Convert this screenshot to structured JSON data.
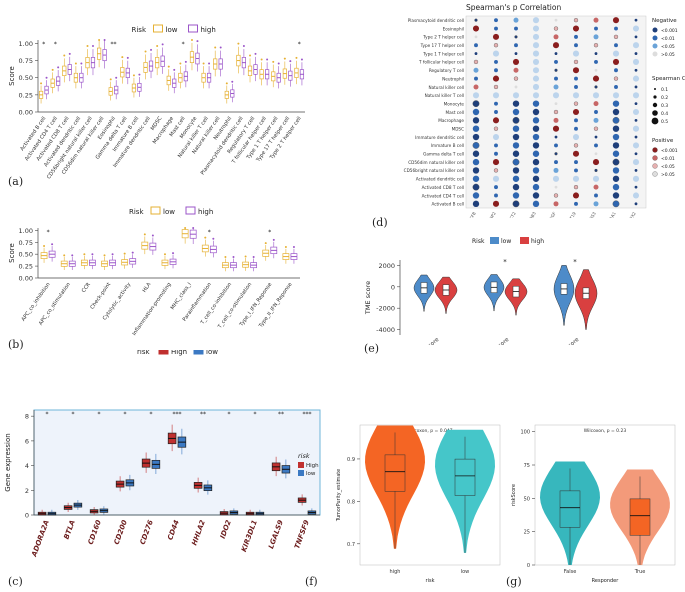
{
  "labels": {
    "a": "(a)",
    "b": "(b)",
    "c": "(c)",
    "d": "(d)",
    "e": "(e)",
    "f": "(f)",
    "g": "(g)"
  },
  "colors": {
    "low": "#e6b133",
    "high": "#9b55c9",
    "red": "#c0302f",
    "blue": "#3b79c3",
    "orange": "#f46524",
    "cyan": "#45c6c9",
    "salmon": "#f39a7a",
    "teal": "#37b7bd",
    "violinBlue": "#4d8bc9",
    "violinRed": "#d94040"
  },
  "chart_data": [
    {
      "id": "a",
      "type": "box",
      "legend_title": "Risk",
      "legend": [
        "low",
        "high"
      ],
      "ylabel": "Score",
      "yticks": [
        "0.00",
        "0.25",
        "0.50",
        "0.75",
        "1.00"
      ],
      "ylim": [
        0,
        1.05
      ],
      "categories": [
        "Activated B cell",
        "Activated CD4 T cell",
        "Activated CD8 T cell",
        "Activated dendritic cell",
        "CD56bright natural killer cell",
        "CD56dim natural killer cell",
        "Eosinophil",
        "Gamma delta T cell",
        "Immature B cell",
        "Immature dendritic cell",
        "MDSC",
        "Macrophage",
        "Mast cell",
        "Monocyte",
        "Natural killer T cell",
        "Natural killer cell",
        "Neutrophil",
        "Plasmacytoid dendritic cell",
        "Regulatory T cell",
        "T follicular helper cell",
        "Type 1 T helper cell",
        "Type 17 T helper cell",
        "Type 2 T helper cell"
      ],
      "series": [
        {
          "name": "low",
          "medians": [
            0.25,
            0.42,
            0.6,
            0.5,
            0.72,
            0.85,
            0.3,
            0.58,
            0.35,
            0.65,
            0.72,
            0.46,
            0.5,
            0.8,
            0.5,
            0.7,
            0.25,
            0.75,
            0.6,
            0.55,
            0.52,
            0.56,
            0.57
          ]
        },
        {
          "name": "high",
          "medians": [
            0.32,
            0.45,
            0.62,
            0.5,
            0.72,
            0.83,
            0.32,
            0.57,
            0.36,
            0.67,
            0.74,
            0.42,
            0.52,
            0.78,
            0.5,
            0.7,
            0.27,
            0.72,
            0.62,
            0.55,
            0.5,
            0.53,
            0.55
          ]
        }
      ],
      "significance": [
        "*",
        "*",
        "",
        "",
        "",
        "",
        "**",
        "",
        "",
        "",
        "",
        "",
        "*",
        "",
        "",
        "",
        "",
        "",
        "",
        "",
        "",
        "",
        "*"
      ]
    },
    {
      "id": "b",
      "type": "box",
      "legend_title": "Risk",
      "legend": [
        "low",
        "high"
      ],
      "ylabel": "Score",
      "yticks": [
        "0.00",
        "0.25",
        "0.50",
        "0.75",
        "1.00"
      ],
      "ylim": [
        0,
        1.05
      ],
      "categories": [
        "APC_co_inhibition",
        "APC_co_stimulation",
        "CCR",
        "Check-point",
        "Cytolytic_activity",
        "HLA",
        "Inflammation-promoting",
        "MHC_class_I",
        "Parainflammation",
        "T_cell_co-inhibition",
        "T_cell_co-stimulation",
        "Type_I_IFN_Reponse",
        "Type_II_IFN_Reponse"
      ],
      "series": [
        {
          "name": "low",
          "medians": [
            0.47,
            0.3,
            0.32,
            0.3,
            0.33,
            0.68,
            0.32,
            0.93,
            0.62,
            0.27,
            0.28,
            0.52,
            0.45
          ]
        },
        {
          "name": "high",
          "medians": [
            0.5,
            0.3,
            0.32,
            0.32,
            0.35,
            0.66,
            0.34,
            0.92,
            0.6,
            0.27,
            0.27,
            0.58,
            0.45
          ]
        }
      ],
      "significance": [
        "*",
        "",
        "",
        "",
        "",
        "",
        "",
        "",
        "*",
        "",
        "",
        "*",
        ""
      ]
    },
    {
      "id": "c",
      "type": "box",
      "legend_title": "risk",
      "legend": [
        "High",
        "low"
      ],
      "ylabel": "Gene expression",
      "yticks": [
        "0",
        "2",
        "4",
        "6",
        "8"
      ],
      "ylim": [
        0,
        8.5
      ],
      "categories": [
        "ADORA2A",
        "BTLA",
        "CD160",
        "CD200",
        "CD276",
        "CD44",
        "HHLA2",
        "IDO2",
        "KIR3DL1",
        "LGALS9",
        "TNFSF9"
      ],
      "series": [
        {
          "name": "High",
          "medians": [
            0.1,
            0.6,
            0.3,
            2.5,
            4.2,
            6.2,
            2.4,
            0.15,
            0.1,
            3.9,
            1.2
          ]
        },
        {
          "name": "low",
          "medians": [
            0.1,
            0.8,
            0.35,
            2.6,
            4.1,
            5.9,
            2.2,
            0.2,
            0.1,
            3.7,
            0.2
          ]
        }
      ],
      "significance": [
        "*",
        "*",
        "*",
        "*",
        "*",
        "***",
        "**",
        "*",
        "*",
        "**",
        "***"
      ]
    },
    {
      "id": "d",
      "type": "dot-heatmap",
      "title": "Spearman's p Correlation",
      "rows": [
        "Plasmacytoid dendritic cell",
        "Eosinophil",
        "Type 2 T helper cell",
        "Type 17 T helper cell",
        "Type 1 T helper cell",
        "T follicular helper cell",
        "Regulatory T cell",
        "Neutrophil",
        "Natural killer cell",
        "Natural killer T cell",
        "Monocyte",
        "Mast cell",
        "Macrophage",
        "MDSC",
        "Immature dendritic cell",
        "Immature B cell",
        "Gamma delta T cell",
        "CD56dim natural killer cell",
        "CD56bright natural killer cell",
        "Activated dendritic cell",
        "Activated CD8 T cell",
        "Activated CD4 T cell",
        "Activated B cell"
      ],
      "columns": [
        "CFB",
        "CRABP2",
        "ECT2",
        "ERBB3",
        "HBEGF",
        "KRT19",
        "PRSS3",
        "SLC2A1",
        "TPX2"
      ],
      "legend_negative_title": "Negative",
      "legend_negative": [
        "<0.001",
        "<0.01",
        "<0.05",
        ">0.05"
      ],
      "legend_size_title": "Spearman Correlation",
      "legend_size": [
        "0.1",
        "0.2",
        "0.3",
        "0.4",
        "0.5"
      ],
      "legend_positive_title": "Positive",
      "legend_positive": [
        "<0.001",
        "<0.01",
        "<0.05",
        ">0.05"
      ]
    },
    {
      "id": "e",
      "type": "violin",
      "legend_title": "Risk",
      "legend": [
        "low",
        "high"
      ],
      "ylabel": "TME score",
      "yticks": [
        "2000",
        "0",
        "-2000",
        "-4000"
      ],
      "ylim": [
        -4500,
        2500
      ],
      "categories": [
        "StromalScore",
        "ImmuneScore",
        "ESTIMATEScore"
      ],
      "series": [
        {
          "name": "low",
          "medians": [
            -100,
            -50,
            -200
          ]
        },
        {
          "name": "high",
          "medians": [
            -300,
            -450,
            -600
          ]
        }
      ],
      "significance": [
        "",
        "*",
        "*"
      ]
    },
    {
      "id": "f",
      "type": "violin",
      "annotation": "Wilcoxon, p = 0.047",
      "xlabel": "risk",
      "ylabel": "TumorPurity_estimate",
      "yticks": [
        "0.9",
        "0.8",
        "0.7"
      ],
      "ylim": [
        0.65,
        0.98
      ],
      "categories": [
        "high",
        "low"
      ],
      "medians": [
        0.87,
        0.86
      ]
    },
    {
      "id": "g",
      "type": "violin",
      "annotation": "Wilcoxon, p = 0.23",
      "xlabel": "Responder",
      "ylabel": "riskScore",
      "yticks": [
        "100",
        "75",
        "50",
        "25",
        "0"
      ],
      "ylim": [
        0,
        105
      ],
      "categories": [
        "False",
        "True"
      ],
      "medians": [
        43,
        37
      ]
    }
  ]
}
